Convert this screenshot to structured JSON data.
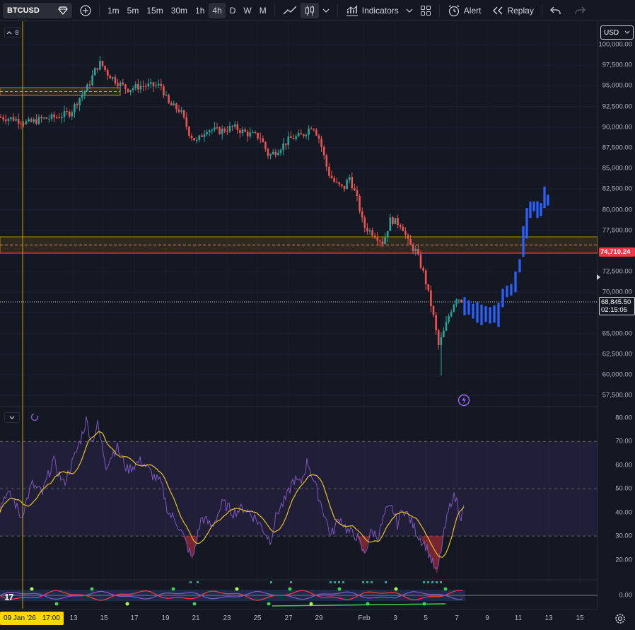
{
  "toolbar": {
    "symbol": "BTCUSD",
    "intervals": [
      "1m",
      "5m",
      "15m",
      "30m",
      "1h",
      "4h",
      "D",
      "W",
      "M"
    ],
    "active_interval": "4h",
    "indicators_label": "Indicators",
    "alert_label": "Alert",
    "replay_label": "Replay"
  },
  "legend": {
    "collapsed_count": "8"
  },
  "price_axis": {
    "currency": "USD",
    "labels": [
      "100,000.00",
      "97,500.00",
      "95,000.00",
      "92,500.00",
      "90,000.00",
      "87,500.00",
      "85,000.00",
      "82,500.00",
      "80,000.00",
      "77,500.00",
      "72,500.00",
      "70,000.00",
      "67,500.00",
      "65,000.00",
      "62,500.00",
      "60,000.00",
      "57,500.00"
    ],
    "level_label": "74,710.24",
    "last_price": "68,845.50",
    "countdown": "02:15:05"
  },
  "rsi_axis": {
    "labels": [
      "80.00",
      "70.00",
      "60.00",
      "50.00",
      "40.00",
      "30.00",
      "20.00"
    ]
  },
  "osc_axis": {
    "label": "0.00"
  },
  "time_axis": {
    "labels": [
      "13",
      "15",
      "17",
      "19",
      "21",
      "23",
      "25",
      "27",
      "29",
      "Feb",
      "3",
      "5",
      "7",
      "9",
      "11",
      "13",
      "15"
    ],
    "crosshair_label": "09 Jan '26",
    "crosshair_time": "17:00"
  },
  "colors": {
    "background": "#141823",
    "up_candle": "#26a69a",
    "down_candle": "#ef5350",
    "projection": "#2962ff",
    "level_line": "#f23645",
    "zone": "#b8860b",
    "rsi_line": "#7e57c2",
    "rsi_ma": "#e6c229",
    "crosshair": "#c8a415"
  },
  "icons": [
    "diamond-icon",
    "add-symbol-icon",
    "line-chart-icon",
    "candles-icon",
    "chevron-down-icon",
    "indicators-icon",
    "templates-icon",
    "alert-icon",
    "replay-icon",
    "undo-icon",
    "redo-icon",
    "settings-icon",
    "lightning-icon"
  ]
}
